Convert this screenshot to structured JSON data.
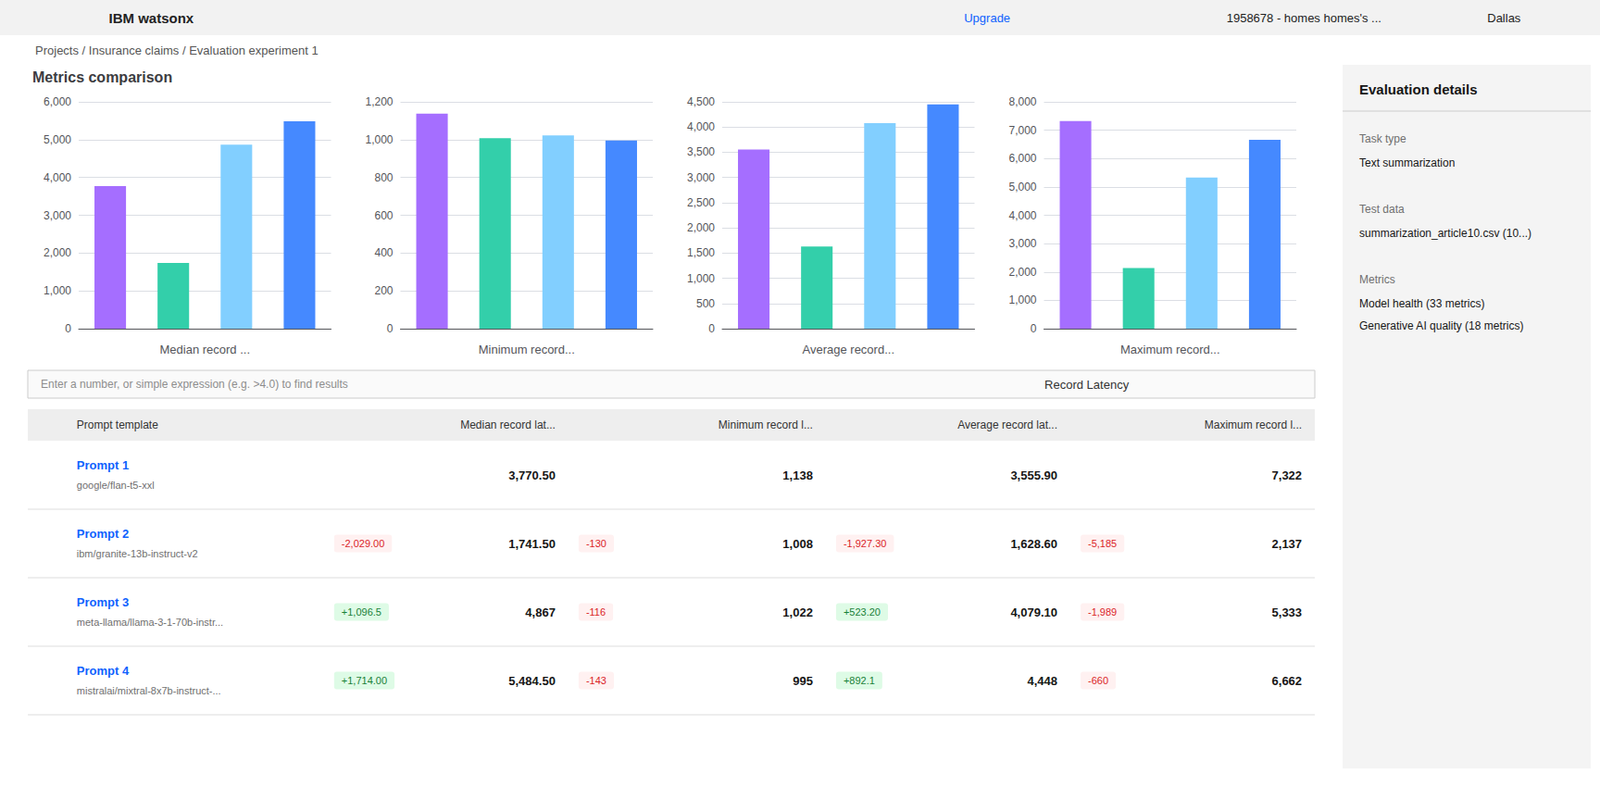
{
  "title": "Metrics comparison",
  "chart_data": [
    {
      "type": "bar",
      "title": "Median record ...",
      "categories": [
        null,
        null,
        null,
        null
      ],
      "values": [
        3770,
        1741,
        4867,
        5484
      ],
      "colors": [
        "#a56eff",
        "#33cfaa",
        "#82cfff",
        "#4589ff"
      ],
      "ylim": [
        0,
        6000
      ],
      "yticks": [
        0,
        {
          "value": 1000,
          "label": "1,000"
        },
        {
          "value": 2000,
          "label": "2,000"
        },
        {
          "value": 3000,
          "label": "3,000"
        },
        {
          "value": 4000,
          "label": "4,000"
        },
        {
          "value": 5000,
          "label": "5,000"
        },
        {
          "value": 6000,
          "label": "6,000"
        }
      ],
      "grid": true,
      "tick_labels": "y"
    },
    {
      "type": "bar",
      "title": "Minimum record...",
      "categories": [
        null,
        null,
        null,
        null
      ],
      "values": [
        1138,
        1008,
        1022,
        995
      ],
      "colors": [
        "#a56eff",
        "#33cfaa",
        "#82cfff",
        "#4589ff"
      ],
      "ylim": [
        0,
        1200
      ],
      "yticks": [
        0,
        200,
        400,
        600,
        800,
        {
          "value": 1000,
          "label": "1,000"
        },
        {
          "value": 1200,
          "label": "1,200"
        }
      ],
      "grid": true,
      "tick_labels": "y"
    },
    {
      "type": "bar",
      "title": "Average record...",
      "categories": [
        null,
        null,
        null,
        null
      ],
      "values": [
        3556,
        1629,
        4079,
        4448
      ],
      "colors": [
        "#a56eff",
        "#33cfaa",
        "#82cfff",
        "#4589ff"
      ],
      "ylim": [
        0,
        4500
      ],
      "yticks": [
        0,
        500,
        {
          "value": 1000,
          "label": "1,000"
        },
        {
          "value": 1500,
          "label": "1,500"
        },
        {
          "value": 2000,
          "label": "2,000"
        },
        {
          "value": 2500,
          "label": "2,500"
        },
        {
          "value": 3000,
          "label": "3,000"
        },
        {
          "value": 3500,
          "label": "3,500"
        },
        {
          "value": 4000,
          "label": "4,000"
        },
        {
          "value": 4500,
          "label": "4,500"
        }
      ],
      "grid": true,
      "tick_labels": "y"
    },
    {
      "type": "bar",
      "title": "Maximum record...",
      "categories": [
        null,
        null,
        null,
        null
      ],
      "values": [
        7322,
        2137,
        5333,
        6662
      ],
      "colors": [
        "#a56eff",
        "#33cfaa",
        "#82cfff",
        "#4589ff"
      ],
      "ylim": [
        0,
        8000
      ],
      "yticks": [
        0,
        {
          "value": 1000,
          "label": "1,000"
        },
        {
          "value": 2000,
          "label": "2,000"
        },
        {
          "value": 3000,
          "label": "3,000"
        },
        {
          "value": 4000,
          "label": "4,000"
        },
        {
          "value": 5000,
          "label": "5,000"
        },
        {
          "value": 6000,
          "label": "6,000"
        },
        {
          "value": 7000,
          "label": "7,000"
        },
        {
          "value": 8000,
          "label": "8,000"
        }
      ],
      "grid": true,
      "tick_labels": "y"
    }
  ],
  "annotations": {
    "header": [
      "IBM watsonx",
      "Upgrade",
      "1958678 - homes homes's ...",
      "Dallas"
    ],
    "breadcrumb": [
      "Projects",
      "/",
      "Insurance claims",
      "/",
      "Evaluation experiment 1"
    ],
    "search": [
      "Enter a number, or simple expression (e.g. >4.0) to find results",
      "Record Latency"
    ],
    "table": {
      "headers": [
        "Prompt template",
        "Median record lat...",
        "Minimum record l...",
        "Average record lat...",
        "Maximum record l..."
      ],
      "rows": [
        {
          "name": "Prompt 1",
          "model": "google/flan-t5-xxl",
          "cells": [
            [
              "3,770.50"
            ],
            [
              "1,138"
            ],
            [
              "3,555.90"
            ],
            [
              "7,322"
            ]
          ]
        },
        {
          "name": "Prompt 2",
          "model": "ibm/granite-13b-instruct-v2",
          "cells": [
            [
              "-2,029.00",
              "1,741.50"
            ],
            [
              "-130",
              "1,008"
            ],
            [
              "-1,927.30",
              "1,628.60"
            ],
            [
              "-5,185",
              "2,137"
            ]
          ]
        },
        {
          "name": "Prompt 3",
          "model": "meta-llama/llama-3-1-70b-instr...",
          "cells": [
            [
              "+1,096.5",
              "4,867"
            ],
            [
              "-116",
              "1,022"
            ],
            [
              "+523.20",
              "4,079.10"
            ],
            [
              "-1,989",
              "5,333"
            ]
          ]
        },
        {
          "name": "Prompt 4",
          "model": "mistralai/mixtral-8x7b-instruct-...",
          "cells": [
            [
              "+1,714.00",
              "5,484.50"
            ],
            [
              "-143",
              "995"
            ],
            [
              "+892.1",
              "4,448"
            ],
            [
              "-660",
              "6,662"
            ]
          ]
        }
      ]
    },
    "panel": {
      "title": "Evaluation details",
      "items": [
        {
          "label": "Task type",
          "values": [
            "Text summarization"
          ]
        },
        {
          "label": "Test data",
          "values": [
            "summarization_article10.csv (10...)"
          ]
        },
        {
          "label": "Metrics",
          "values": [
            "Model health (33 metrics)",
            "Generative AI quality (18 metrics)"
          ]
        }
      ]
    }
  }
}
